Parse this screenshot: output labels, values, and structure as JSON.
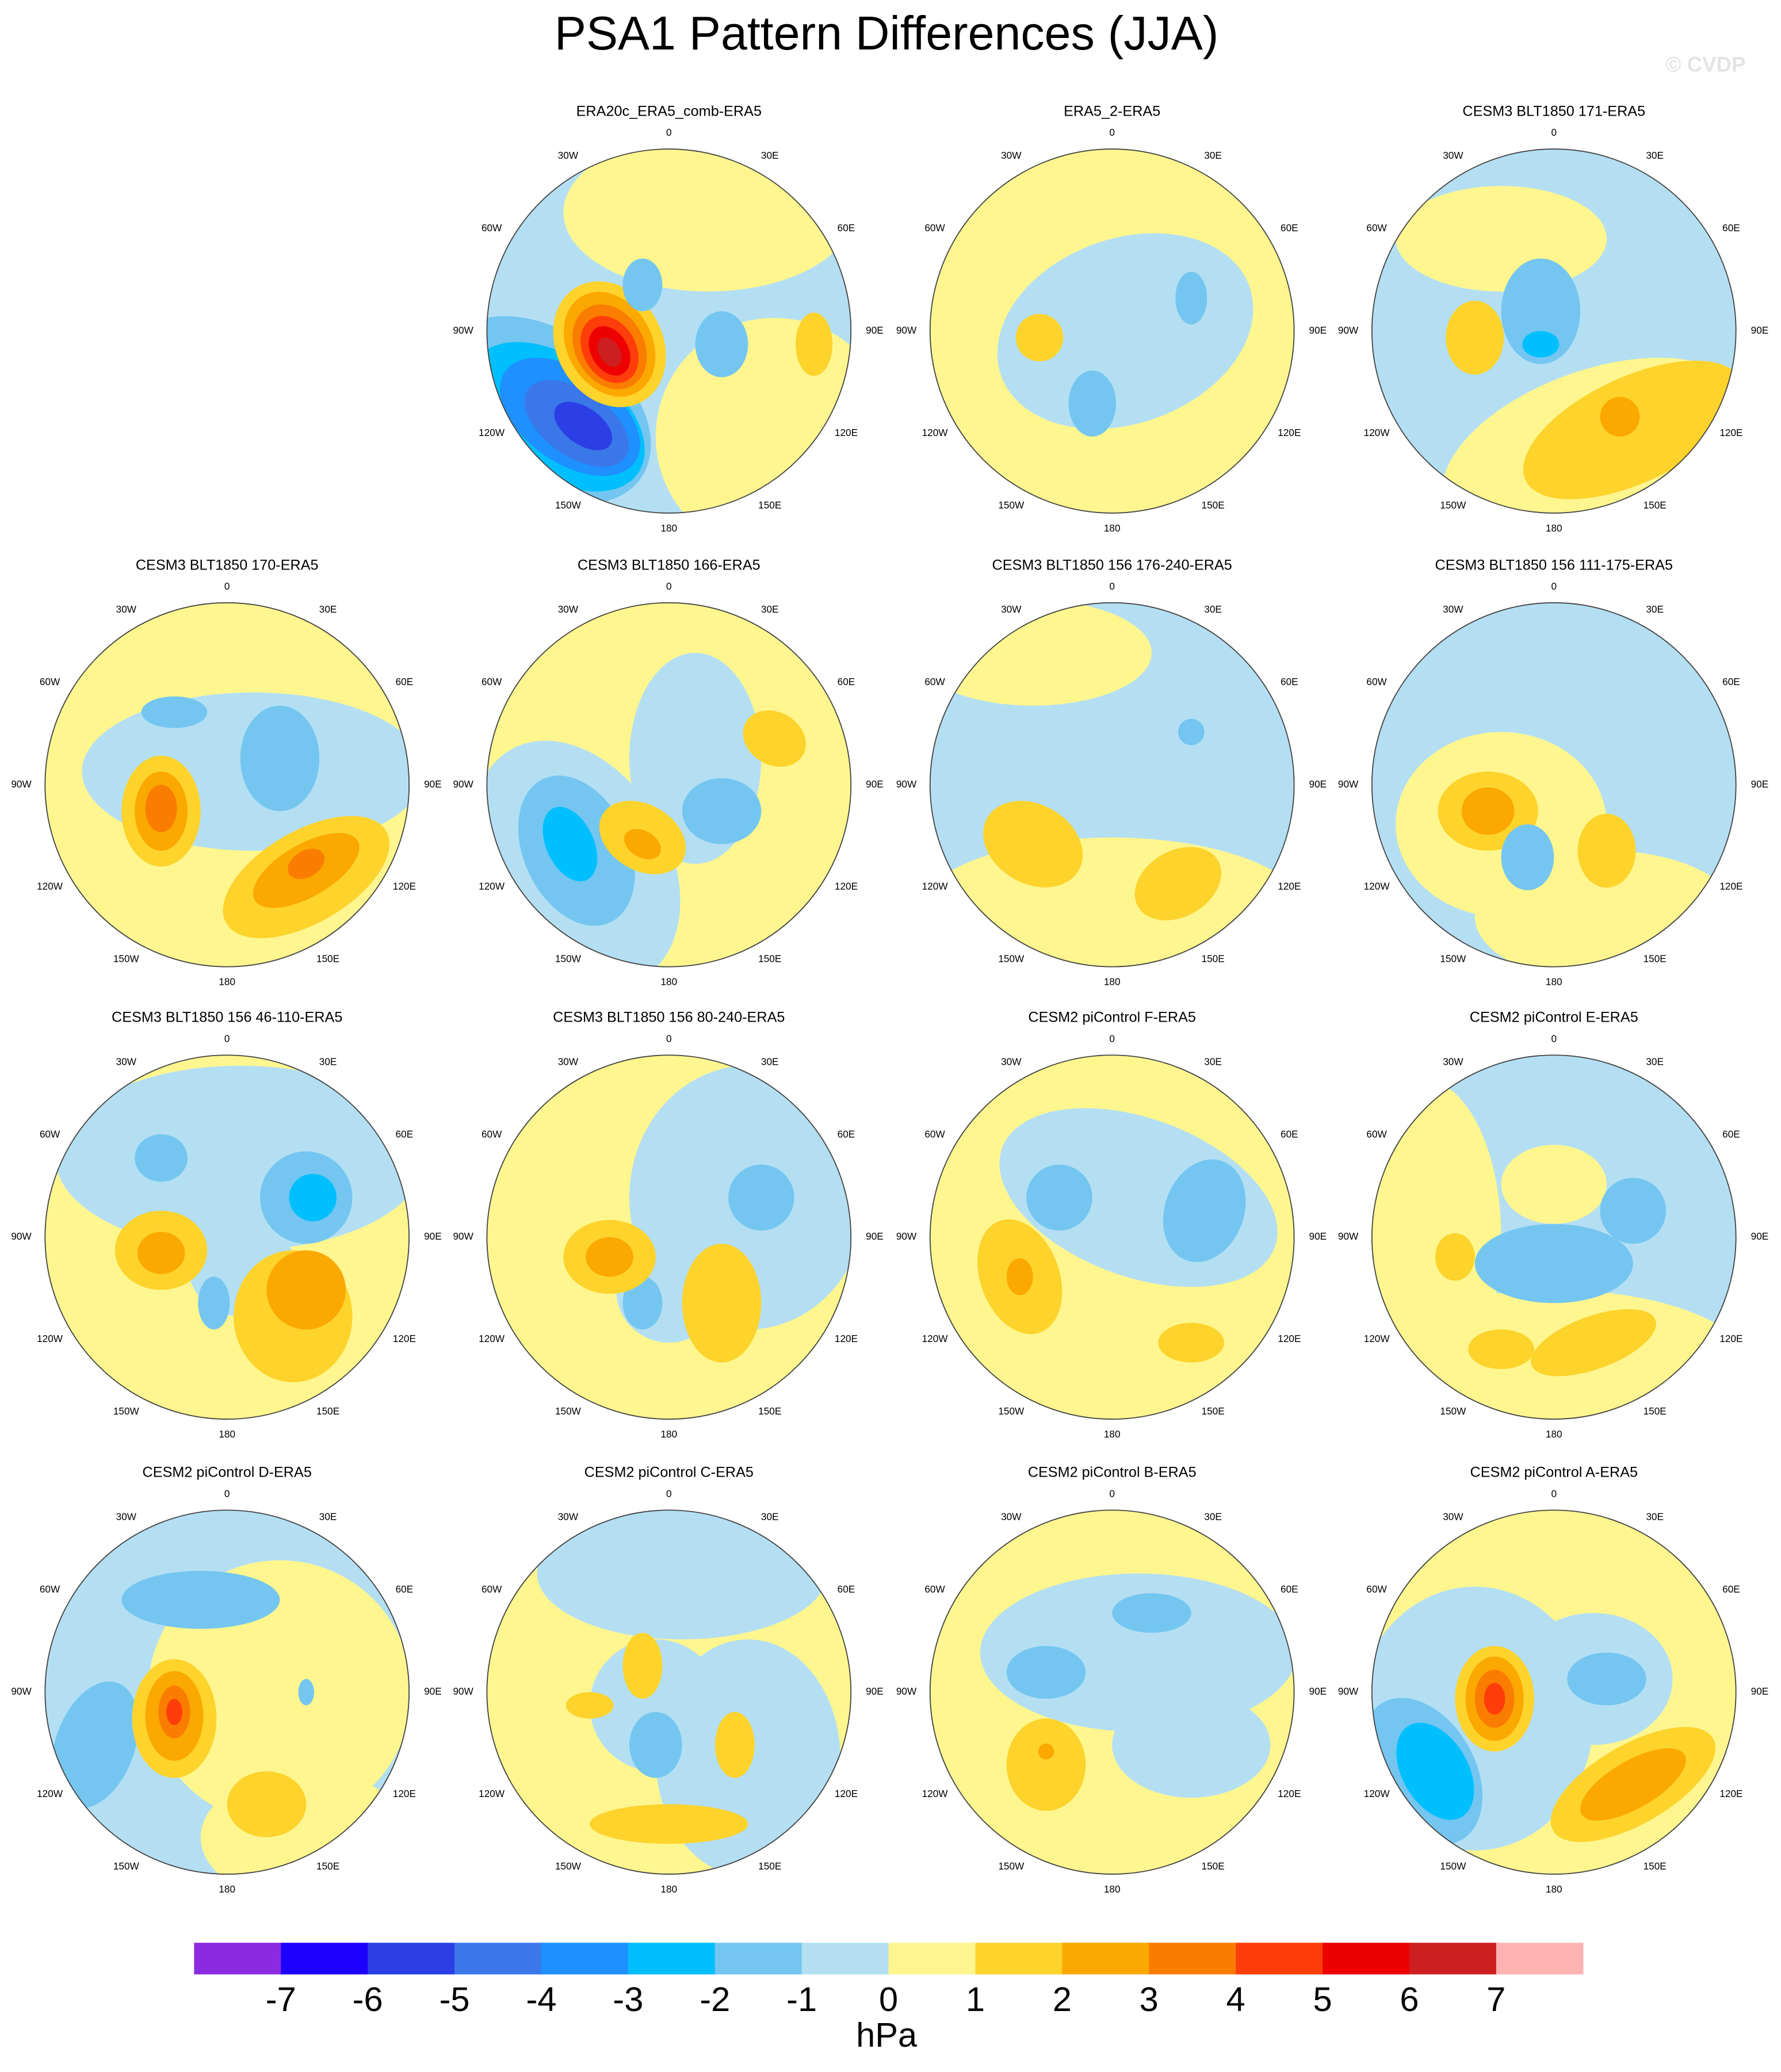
{
  "title": "PSA1 Pattern Differences (JJA)",
  "watermark": "© CVDP",
  "panels": [
    {
      "title": "ERA20c_ERA5_comb-ERA5"
    },
    {
      "title": "ERA5_2-ERA5"
    },
    {
      "title": "CESM3 BLT1850 171-ERA5"
    },
    {
      "title": "CESM3 BLT1850 170-ERA5"
    },
    {
      "title": "CESM3 BLT1850 166-ERA5"
    },
    {
      "title": "CESM3 BLT1850 156 176-240-ERA5"
    },
    {
      "title": "CESM3 BLT1850 156 111-175-ERA5"
    },
    {
      "title": "CESM3 BLT1850 156 46-110-ERA5"
    },
    {
      "title": "CESM3 BLT1850 156 80-240-ERA5"
    },
    {
      "title": "CESM2 piControl F-ERA5"
    },
    {
      "title": "CESM2 piControl E-ERA5"
    },
    {
      "title": "CESM2 piControl D-ERA5"
    },
    {
      "title": "CESM2 piControl C-ERA5"
    },
    {
      "title": "CESM2 piControl B-ERA5"
    },
    {
      "title": "CESM2 piControl A-ERA5"
    }
  ],
  "longitude_labels": [
    "0",
    "30E",
    "60E",
    "90E",
    "120E",
    "150E",
    "180",
    "150W",
    "120W",
    "90W",
    "60W",
    "30W"
  ],
  "colorbar": {
    "colors": [
      "#8a2be2",
      "#1e00ff",
      "#2c3fe6",
      "#3a78ea",
      "#1e90ff",
      "#00bfff",
      "#74c6f0",
      "#b4dff3",
      "#fff68f",
      "#fdd32c",
      "#fba800",
      "#fa7d00",
      "#ff3d0a",
      "#ee0000",
      "#cd1f1f",
      "#ffb2b2"
    ],
    "ticks": [
      -7,
      -6,
      -5,
      -4,
      -3,
      -2,
      -1,
      0,
      1,
      2,
      3,
      4,
      5,
      6,
      7
    ],
    "units": "hPa"
  }
}
